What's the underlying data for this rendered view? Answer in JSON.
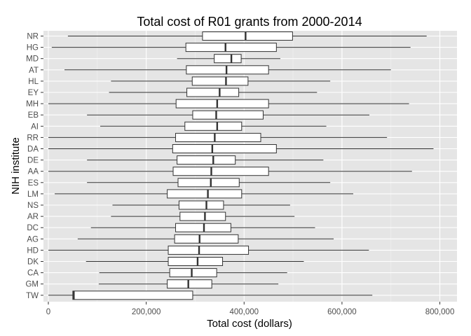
{
  "chart_data": {
    "type": "boxplot",
    "orientation": "horizontal",
    "title": "Total cost of R01 grants from 2000-2014",
    "xlabel": "Total cost (dollars)",
    "ylabel": "NIH institute",
    "xlim": [
      -10000,
      835000
    ],
    "x_ticks": [
      0,
      200000,
      400000,
      600000,
      800000
    ],
    "x_tick_labels": [
      "0",
      "200,000",
      "400,000",
      "600,000",
      "800,000"
    ],
    "grid": true,
    "legend": "none",
    "colors": {
      "panel": "#e5e5e5",
      "grid_major": "#ffffff",
      "grid_minor": "#f2f2f2",
      "box_fill": "#ffffff",
      "box_line": "#333333",
      "tick_text": "#4d4d4d"
    },
    "categories": [
      "NR",
      "HG",
      "MD",
      "AT",
      "HL",
      "EY",
      "MH",
      "EB",
      "AI",
      "RR",
      "DA",
      "DE",
      "AA",
      "ES",
      "LM",
      "NS",
      "AR",
      "DC",
      "AG",
      "HD",
      "DK",
      "CA",
      "GM",
      "TW"
    ],
    "boxes": [
      {
        "label": "NR",
        "min": 40000,
        "q1": 315000,
        "median": 403000,
        "q3": 499000,
        "max": 773000
      },
      {
        "label": "HG",
        "min": 7000,
        "q1": 281000,
        "median": 362000,
        "q3": 466000,
        "max": 740000
      },
      {
        "label": "MD",
        "min": 263000,
        "q1": 339000,
        "median": 374000,
        "q3": 394000,
        "max": 474000
      },
      {
        "label": "AT",
        "min": 33000,
        "q1": 282000,
        "median": 364000,
        "q3": 450000,
        "max": 700000
      },
      {
        "label": "HL",
        "min": 128000,
        "q1": 294000,
        "median": 363000,
        "q3": 408000,
        "max": 576000
      },
      {
        "label": "EY",
        "min": 124000,
        "q1": 283000,
        "median": 350000,
        "q3": 389000,
        "max": 549000
      },
      {
        "label": "MH",
        "min": 0,
        "q1": 261000,
        "median": 345000,
        "q3": 450000,
        "max": 737000
      },
      {
        "label": "EB",
        "min": 79000,
        "q1": 295000,
        "median": 343000,
        "q3": 439000,
        "max": 656000
      },
      {
        "label": "AI",
        "min": 106000,
        "q1": 279000,
        "median": 345000,
        "q3": 395000,
        "max": 568000
      },
      {
        "label": "RR",
        "min": 0,
        "q1": 260000,
        "median": 340000,
        "q3": 434000,
        "max": 692000
      },
      {
        "label": "DA",
        "min": 0,
        "q1": 254000,
        "median": 335000,
        "q3": 466000,
        "max": 787000
      },
      {
        "label": "DE",
        "min": 79000,
        "q1": 263000,
        "median": 337000,
        "q3": 382000,
        "max": 562000
      },
      {
        "label": "AA",
        "min": 0,
        "q1": 255000,
        "median": 333000,
        "q3": 450000,
        "max": 743000
      },
      {
        "label": "ES",
        "min": 79000,
        "q1": 265000,
        "median": 332000,
        "q3": 390000,
        "max": 576000
      },
      {
        "label": "LM",
        "min": 13000,
        "q1": 243000,
        "median": 326000,
        "q3": 395000,
        "max": 623000
      },
      {
        "label": "NS",
        "min": 131000,
        "q1": 267000,
        "median": 323000,
        "q3": 358000,
        "max": 494000
      },
      {
        "label": "AR",
        "min": 128000,
        "q1": 269000,
        "median": 320000,
        "q3": 362000,
        "max": 503000
      },
      {
        "label": "DC",
        "min": 87000,
        "q1": 260000,
        "median": 318000,
        "q3": 373000,
        "max": 545000
      },
      {
        "label": "AG",
        "min": 60000,
        "q1": 258000,
        "median": 309000,
        "q3": 388000,
        "max": 583000
      },
      {
        "label": "HD",
        "min": 0,
        "q1": 245000,
        "median": 308000,
        "q3": 409000,
        "max": 655000
      },
      {
        "label": "DK",
        "min": 77000,
        "q1": 245000,
        "median": 305000,
        "q3": 356000,
        "max": 522000
      },
      {
        "label": "CA",
        "min": 104000,
        "q1": 248000,
        "median": 293000,
        "q3": 344000,
        "max": 488000
      },
      {
        "label": "GM",
        "min": 103000,
        "q1": 243000,
        "median": 286000,
        "q3": 334000,
        "max": 470000
      },
      {
        "label": "TW",
        "min": 0,
        "q1": 50000,
        "median": 52000,
        "q3": 295000,
        "max": 662000
      }
    ]
  }
}
